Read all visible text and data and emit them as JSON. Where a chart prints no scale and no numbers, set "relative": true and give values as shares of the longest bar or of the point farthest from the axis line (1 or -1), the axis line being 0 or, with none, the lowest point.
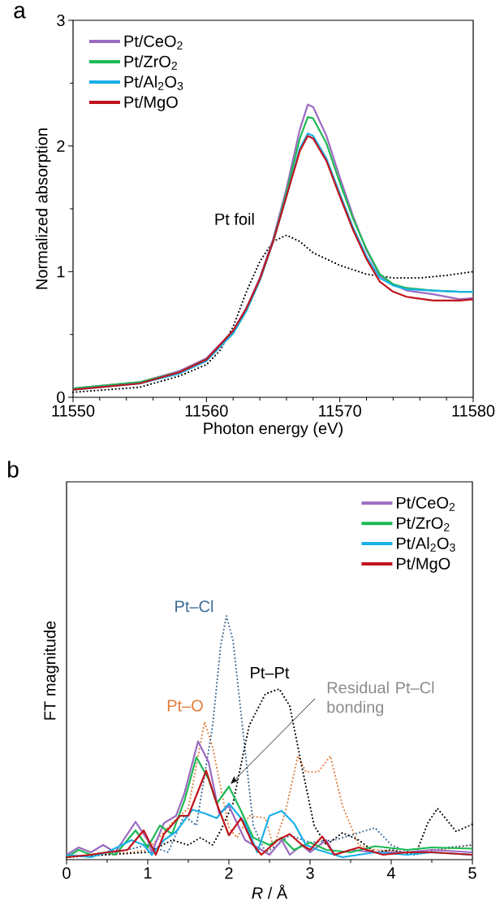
{
  "chart_data": [
    {
      "type": "line",
      "title": "a",
      "xlabel": "Photon energy (eV)",
      "ylabel": "Normalized absorption",
      "xlim": [
        11550,
        11580
      ],
      "xticks": [
        11550,
        11560,
        11570,
        11580
      ],
      "ylim": [
        0,
        3
      ],
      "yticks": [
        0,
        1,
        2,
        3
      ],
      "legend": "top left",
      "series": [
        {
          "name": "Pt foil",
          "color": "#000000",
          "line_style": "dotted",
          "x": [
            11550,
            11555,
            11558,
            11560,
            11561,
            11562,
            11563,
            11564,
            11565,
            11566,
            11567,
            11568,
            11569,
            11570,
            11572,
            11574,
            11576,
            11578,
            11580
          ],
          "values": [
            0.04,
            0.08,
            0.17,
            0.26,
            0.37,
            0.56,
            0.84,
            1.08,
            1.24,
            1.29,
            1.24,
            1.15,
            1.1,
            1.05,
            0.98,
            0.95,
            0.95,
            0.97,
            1.0
          ]
        },
        {
          "name": "Pt/CeO$_{2}$",
          "color": "#9b6bc1",
          "line_style": "solid",
          "x": [
            11550,
            11555,
            11558,
            11560,
            11562,
            11563,
            11564,
            11565,
            11566,
            11567,
            11567.6,
            11568,
            11569,
            11570,
            11571,
            11572,
            11573,
            11574,
            11575,
            11577,
            11579,
            11580
          ],
          "values": [
            0.07,
            0.12,
            0.21,
            0.31,
            0.53,
            0.71,
            0.95,
            1.26,
            1.66,
            2.13,
            2.33,
            2.31,
            2.08,
            1.75,
            1.44,
            1.17,
            0.97,
            0.9,
            0.85,
            0.82,
            0.78,
            0.79
          ]
        },
        {
          "name": "Pt/ZrO$_{2}$",
          "color": "#1db954",
          "line_style": "solid",
          "x": [
            11550,
            11555,
            11558,
            11560,
            11562,
            11563,
            11564,
            11565,
            11566,
            11567,
            11567.6,
            11568,
            11569,
            11570,
            11571,
            11572,
            11573,
            11574,
            11575,
            11577,
            11579,
            11580
          ],
          "values": [
            0.07,
            0.12,
            0.2,
            0.3,
            0.51,
            0.69,
            0.93,
            1.24,
            1.63,
            2.06,
            2.23,
            2.22,
            2.02,
            1.71,
            1.42,
            1.18,
            0.98,
            0.9,
            0.87,
            0.85,
            0.84,
            0.84
          ]
        },
        {
          "name": "Pt/Al$_{2}$O$_{3}$",
          "color": "#1ab0e8",
          "line_style": "solid",
          "x": [
            11550,
            11555,
            11558,
            11560,
            11562,
            11563,
            11564,
            11565,
            11566,
            11567,
            11567.6,
            11568,
            11569,
            11570,
            11571,
            11572,
            11573,
            11574,
            11575,
            11577,
            11579,
            11580
          ],
          "values": [
            0.06,
            0.11,
            0.19,
            0.29,
            0.51,
            0.69,
            0.93,
            1.24,
            1.6,
            1.98,
            2.1,
            2.08,
            1.9,
            1.62,
            1.35,
            1.12,
            0.95,
            0.89,
            0.86,
            0.85,
            0.84,
            0.84
          ]
        },
        {
          "name": "Pt/MgO",
          "color": "#c0141c",
          "line_style": "solid",
          "x": [
            11550,
            11555,
            11558,
            11560,
            11562,
            11563,
            11564,
            11565,
            11566,
            11567,
            11567.6,
            11568,
            11569,
            11570,
            11571,
            11572,
            11573,
            11574,
            11575,
            11577,
            11579,
            11580
          ],
          "values": [
            0.06,
            0.11,
            0.2,
            0.3,
            0.53,
            0.71,
            0.94,
            1.24,
            1.6,
            1.96,
            2.08,
            2.06,
            1.88,
            1.6,
            1.33,
            1.1,
            0.92,
            0.84,
            0.8,
            0.77,
            0.77,
            0.78
          ]
        }
      ]
    },
    {
      "type": "line",
      "title": "b",
      "xlabel": "*R* / Å",
      "ylabel": "FT magnitude",
      "relative": true,
      "tick_labels": "x",
      "xlim": [
        0,
        5
      ],
      "xticks": [
        0,
        1,
        2,
        3,
        4,
        5
      ],
      "legend": "top right",
      "annotations": [
        {
          "text": "Residual Pt–Cl bonding",
          "x": 2.02,
          "y": 0.31
        }
      ],
      "series": [
        {
          "name": "Pt–O",
          "color": "#e07b39",
          "line_style": "dotted",
          "x": [
            0,
            0.8,
            1.0,
            1.3,
            1.5,
            1.7,
            1.8,
            2.0,
            2.1,
            2.25,
            2.45,
            2.55,
            2.7,
            2.85,
            2.95,
            3.1,
            3.25,
            3.4,
            3.6,
            3.8,
            4.2,
            4.6,
            5
          ],
          "values": [
            0.01,
            0.03,
            0.04,
            0.15,
            0.21,
            0.565,
            0.46,
            0.13,
            0.09,
            0.18,
            0.17,
            0.05,
            0.2,
            0.425,
            0.36,
            0.36,
            0.425,
            0.22,
            0.06,
            0.04,
            0.03,
            0.04,
            0.06
          ]
        },
        {
          "name": "Pt–Cl",
          "color": "#3d6a94",
          "line_style": "dotted",
          "x": [
            0,
            0.5,
            1.0,
            1.25,
            1.45,
            1.6,
            1.8,
            1.9,
            1.97,
            2.05,
            2.15,
            2.3,
            2.45,
            2.6,
            2.75,
            3.0,
            3.3,
            3.6,
            3.8,
            4.0,
            4.3,
            4.7,
            5
          ],
          "values": [
            0.01,
            0.02,
            0.06,
            0.03,
            0.18,
            0.14,
            0.55,
            0.88,
            1.0,
            0.9,
            0.6,
            0.14,
            0.03,
            0.06,
            0.1,
            0.07,
            0.08,
            0.11,
            0.13,
            0.06,
            0.02,
            0.05,
            0.06
          ]
        },
        {
          "name": "Pt–Pt",
          "color": "#000000",
          "line_style": "dotted",
          "x": [
            0,
            0.5,
            1.0,
            1.3,
            1.5,
            1.65,
            1.8,
            1.9,
            2.05,
            2.25,
            2.45,
            2.62,
            2.75,
            2.9,
            3.05,
            3.2,
            3.4,
            3.6,
            3.8,
            4.0,
            4.3,
            4.45,
            4.57,
            4.8,
            5
          ],
          "values": [
            0.01,
            0.02,
            0.03,
            0.08,
            0.06,
            0.09,
            0.06,
            0.12,
            0.23,
            0.55,
            0.68,
            0.7,
            0.63,
            0.38,
            0.14,
            0.06,
            0.11,
            0.08,
            0.03,
            0.04,
            0.02,
            0.15,
            0.21,
            0.115,
            0.145
          ]
        },
        {
          "name": "Pt/CeO$_{2}$",
          "color": "#9b6bc1",
          "line_style": "solid",
          "x": [
            0,
            0.15,
            0.3,
            0.45,
            0.6,
            0.85,
            1.0,
            1.05,
            1.2,
            1.35,
            1.45,
            1.62,
            1.75,
            1.88,
            2.0,
            2.2,
            2.35,
            2.5,
            2.65,
            2.75,
            2.9,
            3.0,
            3.2,
            3.3,
            3.5,
            3.8,
            4.2,
            4.5,
            5
          ],
          "values": [
            0.02,
            0.05,
            0.03,
            0.06,
            0.03,
            0.155,
            0.08,
            0.03,
            0.15,
            0.18,
            0.27,
            0.485,
            0.4,
            0.19,
            0.22,
            0.08,
            0.05,
            0.02,
            0.08,
            0.02,
            0.06,
            0.03,
            0.08,
            0.02,
            0.04,
            0.03,
            0.03,
            0.04,
            0.03
          ]
        },
        {
          "name": "Pt/ZrO$_{2}$",
          "color": "#1db954",
          "line_style": "solid",
          "x": [
            0,
            0.15,
            0.3,
            0.5,
            0.6,
            0.85,
            1.0,
            1.15,
            1.3,
            1.45,
            1.6,
            1.75,
            1.85,
            2.0,
            2.15,
            2.3,
            2.5,
            2.65,
            2.8,
            3.0,
            3.2,
            3.5,
            3.8,
            4.2,
            4.5,
            5
          ],
          "values": [
            0.01,
            0.04,
            0.02,
            0.03,
            0.02,
            0.12,
            0.05,
            0.14,
            0.105,
            0.24,
            0.42,
            0.33,
            0.23,
            0.3,
            0.2,
            0.09,
            0.06,
            0.09,
            0.04,
            0.07,
            0.04,
            0.03,
            0.055,
            0.04,
            0.05,
            0.045
          ]
        },
        {
          "name": "Pt/Al$_{2}$O$_{3}$",
          "color": "#1ab0e8",
          "line_style": "solid",
          "x": [
            0,
            0.3,
            0.5,
            0.8,
            0.95,
            1.05,
            1.2,
            1.35,
            1.55,
            1.7,
            1.85,
            2.0,
            2.2,
            2.35,
            2.5,
            2.65,
            2.8,
            2.95,
            3.1,
            3.4,
            3.8,
            4.2,
            4.5,
            5
          ],
          "values": [
            0.02,
            0.01,
            0.03,
            0.08,
            0.06,
            0.02,
            0.08,
            0.115,
            0.205,
            0.19,
            0.17,
            0.23,
            0.15,
            0.03,
            0.18,
            0.2,
            0.15,
            0.06,
            0.04,
            0.01,
            0.03,
            0.02,
            0.03,
            0.02
          ]
        },
        {
          "name": "Pt/MgO",
          "color": "#c0141c",
          "line_style": "solid",
          "x": [
            0,
            0.3,
            0.5,
            0.75,
            0.95,
            1.1,
            1.2,
            1.4,
            1.5,
            1.72,
            1.85,
            2.0,
            2.15,
            2.3,
            2.4,
            2.6,
            2.75,
            2.9,
            3.0,
            3.15,
            3.3,
            3.6,
            3.9,
            4.2,
            4.5,
            5
          ],
          "values": [
            0.01,
            0.02,
            0.03,
            0.04,
            0.12,
            0.02,
            0.105,
            0.18,
            0.18,
            0.365,
            0.23,
            0.1,
            0.17,
            0.06,
            0.02,
            0.08,
            0.105,
            0.06,
            0.04,
            0.095,
            0.02,
            0.05,
            0.02,
            0.03,
            0.03,
            0.02
          ]
        }
      ]
    }
  ]
}
